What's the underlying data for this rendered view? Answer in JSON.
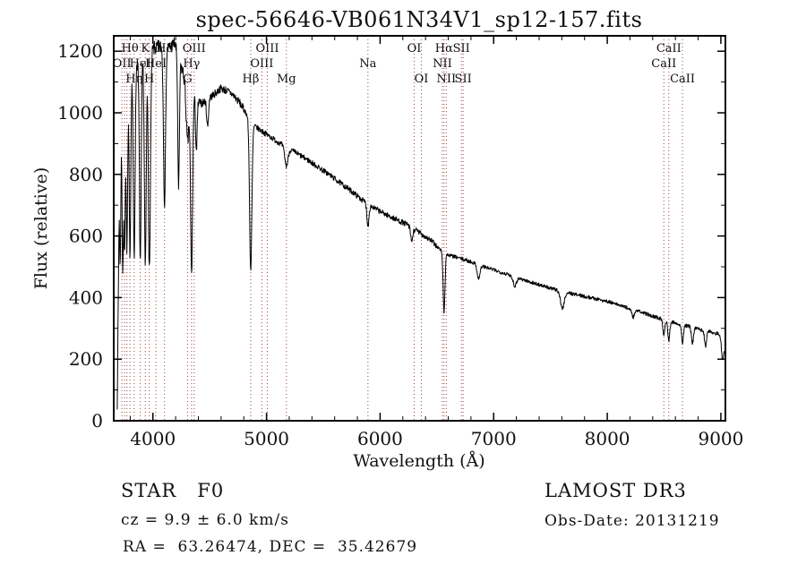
{
  "footer": {
    "class_label": "STAR   F0",
    "cz": "cz = 9.9 ± 6.0 km/s",
    "radec": "RA =  63.26474, DEC =  35.42679",
    "survey": "LAMOST DR3",
    "obs_date": "Obs-Date: 20131219"
  },
  "chart_data": {
    "type": "line",
    "title": "spec-56646-VB061N34V1_sp12-157.fits",
    "xlabel": "Wavelength (Å)",
    "ylabel": "Flux (relative)",
    "xlim": [
      3655,
      9040
    ],
    "ylim": [
      0,
      1250
    ],
    "x_ticks": [
      4000,
      5000,
      6000,
      7000,
      8000,
      9000
    ],
    "y_ticks": [
      0,
      200,
      400,
      600,
      800,
      1000,
      1200
    ],
    "grid": false,
    "legend": "none",
    "line_color": "#000000",
    "marker_color": "#9e4444",
    "description": "LAMOST DR3 stellar spectrum of an F0 star: flux rises steeply at 3700 Å, peaks ~1220 near 4100-4200 Å with deep Balmer/CaII H&K absorption lines, then declines smoothly to ~270 at 9000 Å with Hβ, Na, Hα and CaII-triplet absorption features.",
    "continuum": [
      [
        3686,
        60
      ],
      [
        3695,
        400
      ],
      [
        3705,
        900
      ],
      [
        3715,
        1020
      ],
      [
        3730,
        1060
      ],
      [
        3760,
        1090
      ],
      [
        3800,
        1130
      ],
      [
        3850,
        1160
      ],
      [
        3900,
        1180
      ],
      [
        3960,
        1195
      ],
      [
        4020,
        1210
      ],
      [
        4080,
        1215
      ],
      [
        4140,
        1210
      ],
      [
        4190,
        1225
      ],
      [
        4240,
        1160
      ],
      [
        4290,
        1100
      ],
      [
        4340,
        1080
      ],
      [
        4380,
        1040
      ],
      [
        4430,
        1030
      ],
      [
        4480,
        1045
      ],
      [
        4540,
        1060
      ],
      [
        4600,
        1080
      ],
      [
        4650,
        1072
      ],
      [
        4700,
        1060
      ],
      [
        4760,
        1035
      ],
      [
        4820,
        1000
      ],
      [
        4861,
        968
      ],
      [
        4920,
        950
      ],
      [
        4980,
        935
      ],
      [
        5050,
        918
      ],
      [
        5150,
        893
      ],
      [
        5250,
        872
      ],
      [
        5350,
        850
      ],
      [
        5450,
        825
      ],
      [
        5550,
        800
      ],
      [
        5650,
        772
      ],
      [
        5750,
        745
      ],
      [
        5850,
        715
      ],
      [
        5950,
        690
      ],
      [
        6050,
        670
      ],
      [
        6150,
        652
      ],
      [
        6250,
        635
      ],
      [
        6350,
        610
      ],
      [
        6450,
        585
      ],
      [
        6530,
        555
      ],
      [
        6600,
        538
      ],
      [
        6700,
        528
      ],
      [
        6800,
        516
      ],
      [
        6900,
        502
      ],
      [
        7000,
        490
      ],
      [
        7100,
        478
      ],
      [
        7200,
        466
      ],
      [
        7300,
        453
      ],
      [
        7400,
        442
      ],
      [
        7500,
        430
      ],
      [
        7600,
        420
      ],
      [
        7700,
        412
      ],
      [
        7800,
        404
      ],
      [
        7900,
        396
      ],
      [
        8000,
        388
      ],
      [
        8100,
        376
      ],
      [
        8200,
        364
      ],
      [
        8300,
        352
      ],
      [
        8400,
        340
      ],
      [
        8500,
        328
      ],
      [
        8600,
        318
      ],
      [
        8700,
        308
      ],
      [
        8800,
        298
      ],
      [
        8900,
        290
      ],
      [
        8980,
        282
      ],
      [
        9015,
        272
      ],
      [
        9030,
        256
      ]
    ],
    "absorption_lines": [
      {
        "c": 3712,
        "d": 480,
        "w": 6
      },
      {
        "c": 3734,
        "d": 560,
        "w": 6
      },
      {
        "c": 3750,
        "d": 520,
        "w": 6
      },
      {
        "c": 3771,
        "d": 540,
        "w": 7
      },
      {
        "c": 3798,
        "d": 580,
        "w": 7
      },
      {
        "c": 3835,
        "d": 620,
        "w": 8
      },
      {
        "c": 3889,
        "d": 660,
        "w": 8
      },
      {
        "c": 3933,
        "d": 700,
        "w": 8
      },
      {
        "c": 3969,
        "d": 715,
        "w": 9
      },
      {
        "c": 4102,
        "d": 500,
        "w": 9
      },
      {
        "c": 4226,
        "d": 430,
        "w": 7
      },
      {
        "c": 4305,
        "d": 190,
        "w": 12
      },
      {
        "c": 4340,
        "d": 600,
        "w": 9
      },
      {
        "c": 4383,
        "d": 160,
        "w": 7
      },
      {
        "c": 4481,
        "d": 90,
        "w": 8
      },
      {
        "c": 4861,
        "d": 480,
        "w": 10
      },
      {
        "c": 5175,
        "d": 60,
        "w": 14
      },
      {
        "c": 5893,
        "d": 70,
        "w": 9
      },
      {
        "c": 6278,
        "d": 45,
        "w": 10
      },
      {
        "c": 6563,
        "d": 195,
        "w": 8
      },
      {
        "c": 6867,
        "d": 45,
        "w": 12
      },
      {
        "c": 7186,
        "d": 30,
        "w": 14
      },
      {
        "c": 7605,
        "d": 55,
        "w": 16
      },
      {
        "c": 8227,
        "d": 25,
        "w": 10
      },
      {
        "c": 8498,
        "d": 50,
        "w": 8
      },
      {
        "c": 8542,
        "d": 65,
        "w": 8
      },
      {
        "c": 8662,
        "d": 60,
        "w": 8
      },
      {
        "c": 8750,
        "d": 50,
        "w": 9
      },
      {
        "c": 8865,
        "d": 50,
        "w": 9
      },
      {
        "c": 9015,
        "d": 70,
        "w": 10
      }
    ],
    "spectral_markers": [
      {
        "wavelength": 3727,
        "label": "OII",
        "row": 2
      },
      {
        "wavelength": 3750,
        "label": "",
        "row": 0
      },
      {
        "wavelength": 3771,
        "label": "",
        "row": 0
      },
      {
        "wavelength": 3798,
        "label": "Hθ",
        "row": 1
      },
      {
        "wavelength": 3835,
        "label": "Hη",
        "row": 3
      },
      {
        "wavelength": 3889,
        "label": "HeI",
        "row": 2
      },
      {
        "wavelength": 3933,
        "label": "K",
        "row": 1
      },
      {
        "wavelength": 3968,
        "label": "H",
        "row": 3
      },
      {
        "wavelength": 4026,
        "label": "HeI",
        "row": 2
      },
      {
        "wavelength": 4102,
        "label": "Hδ",
        "row": 1
      },
      {
        "wavelength": 4305,
        "label": "G",
        "row": 3
      },
      {
        "wavelength": 4340,
        "label": "Hγ",
        "row": 2
      },
      {
        "wavelength": 4363,
        "label": "OIII",
        "row": 1
      },
      {
        "wavelength": 4861,
        "label": "Hβ",
        "row": 3
      },
      {
        "wavelength": 4959,
        "label": "OIII",
        "row": 2
      },
      {
        "wavelength": 5007,
        "label": "OIII",
        "row": 1
      },
      {
        "wavelength": 5175,
        "label": "Mg",
        "row": 3
      },
      {
        "wavelength": 5893,
        "label": "Na",
        "row": 2
      },
      {
        "wavelength": 6300,
        "label": "OI",
        "row": 1
      },
      {
        "wavelength": 6363,
        "label": "OI",
        "row": 3
      },
      {
        "wavelength": 6548,
        "label": "NII",
        "row": 2
      },
      {
        "wavelength": 6563,
        "label": "Hα",
        "row": 1
      },
      {
        "wavelength": 6583,
        "label": "NII",
        "row": 3
      },
      {
        "wavelength": 6716,
        "label": "SII",
        "row": 1
      },
      {
        "wavelength": 6731,
        "label": "SII",
        "row": 3
      },
      {
        "wavelength": 8498,
        "label": "CaII",
        "row": 2
      },
      {
        "wavelength": 8542,
        "label": "CaII",
        "row": 1
      },
      {
        "wavelength": 8662,
        "label": "CaII",
        "row": 3
      }
    ]
  }
}
